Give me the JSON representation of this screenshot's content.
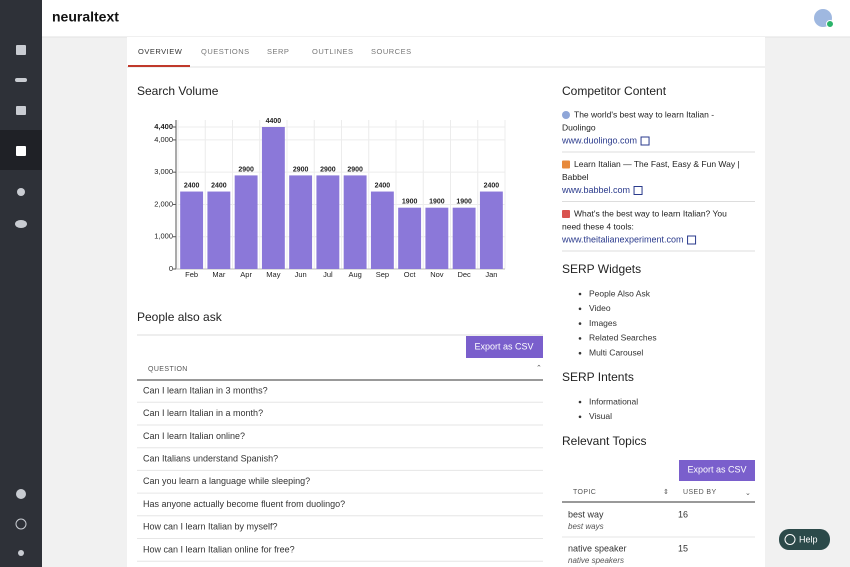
{
  "header": {
    "logo": "neuraltext"
  },
  "tabs": [
    "OVERVIEW",
    "QUESTIONS",
    "SERP",
    "OUTLINES",
    "SOURCES"
  ],
  "chart_data": {
    "type": "bar",
    "title": "Search Volume",
    "categories": [
      "Feb",
      "Mar",
      "Apr",
      "May",
      "Jun",
      "Jul",
      "Aug",
      "Sep",
      "Oct",
      "Nov",
      "Dec",
      "Jan"
    ],
    "values": [
      2400,
      2400,
      2900,
      4400,
      2900,
      2900,
      2900,
      2400,
      1900,
      1900,
      1900,
      2400
    ],
    "color": "#8b78d9",
    "ylim": [
      0,
      4400
    ],
    "yticks": [
      0,
      {
        "value": 1000,
        "label": "1,000"
      },
      {
        "value": 2000,
        "label": "2,000"
      },
      {
        "value": 3000,
        "label": "3,000"
      },
      {
        "value": 4000,
        "label": "4,000"
      },
      {
        "value": 4400,
        "label": "4,400"
      }
    ],
    "grid": true
  },
  "people_also_ask": {
    "title": "People also ask",
    "export": "Export as CSV",
    "column": "QUESTION",
    "questions": [
      "Can I learn Italian in 3 months?",
      "Can I learn Italian in a month?",
      "Can I learn Italian online?",
      "Can Italians understand Spanish?",
      "Can you learn a language while sleeping?",
      "Has anyone actually become fluent from duolingo?",
      "How can I learn Italian by myself?",
      "How can I learn Italian online for free?"
    ]
  },
  "competitor_content": {
    "title": "Competitor Content",
    "items": [
      {
        "title": [
          "The world's best way to learn Italian -",
          "Duolingo"
        ],
        "url": "www.duolingo.com"
      },
      {
        "title": [
          "Learn Italian — The Fast, Easy & Fun Way |",
          "Babbel"
        ],
        "url": "www.babbel.com"
      },
      {
        "title": [
          "What's the best way to learn Italian? You",
          "need these 4 tools:"
        ],
        "url": "www.theitalianexperiment.com"
      }
    ]
  },
  "serp_widgets": {
    "title": "SERP Widgets",
    "items": [
      "People Also Ask",
      "Video",
      "Images",
      "Related Searches",
      "Multi Carousel"
    ]
  },
  "serp_intents": {
    "title": "SERP Intents",
    "items": [
      "Informational",
      "Visual"
    ]
  },
  "relevant_topics": {
    "title": "Relevant Topics",
    "export": "Export as CSV",
    "columns": [
      "TOPIC",
      "USED BY"
    ],
    "rows": [
      {
        "topic": "best way",
        "variant": "best ways",
        "used_by": "16"
      },
      {
        "topic": "native speaker",
        "variant": "native speakers",
        "used_by": "15"
      }
    ]
  },
  "help": "Help"
}
